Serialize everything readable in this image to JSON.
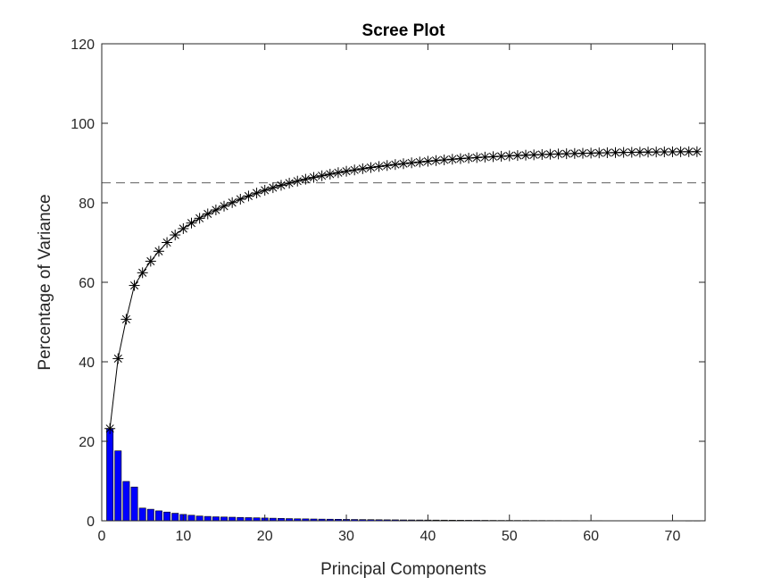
{
  "chart_data": {
    "type": "bar",
    "title": "Scree Plot",
    "xlabel": "Principal Components",
    "ylabel": "Percentage of Variance",
    "xlim": [
      0,
      74
    ],
    "ylim": [
      0,
      120
    ],
    "xticks": [
      0,
      10,
      20,
      30,
      40,
      50,
      60,
      70
    ],
    "yticks": [
      0,
      20,
      40,
      60,
      80,
      100,
      120
    ],
    "threshold": 85,
    "colors": {
      "bars": "#0000ff",
      "bar_edge": "#000000",
      "line": "#000000",
      "threshold": "#262626",
      "axes": "#262626"
    },
    "series": [
      {
        "type": "bar",
        "x": [
          1,
          2,
          3,
          4,
          5,
          6,
          7,
          8,
          9,
          10,
          11,
          12,
          13,
          14,
          15,
          16,
          17,
          18,
          19,
          20,
          21,
          22,
          23,
          24,
          25,
          26,
          27,
          28,
          29,
          30,
          31,
          32,
          33,
          34,
          35,
          36,
          37,
          38,
          39,
          40,
          41,
          42,
          43,
          44,
          45,
          46,
          47,
          48,
          49,
          50,
          51,
          52,
          53,
          54,
          55,
          56,
          57,
          58,
          59,
          60,
          61,
          62,
          63,
          64,
          65,
          66,
          67,
          68,
          69,
          70,
          71,
          72,
          73
        ],
        "values": [
          23.2,
          17.6,
          9.9,
          8.5,
          3.2,
          2.9,
          2.5,
          2.2,
          1.9,
          1.6,
          1.4,
          1.2,
          1.1,
          1.0,
          0.95,
          0.9,
          0.85,
          0.8,
          0.75,
          0.7,
          0.65,
          0.6,
          0.55,
          0.5,
          0.48,
          0.45,
          0.42,
          0.4,
          0.38,
          0.35,
          0.33,
          0.31,
          0.29,
          0.27,
          0.25,
          0.24,
          0.22,
          0.21,
          0.2,
          0.19,
          0.18,
          0.17,
          0.16,
          0.15,
          0.14,
          0.13,
          0.12,
          0.11,
          0.1,
          0.1,
          0.09,
          0.09,
          0.08,
          0.08,
          0.07,
          0.07,
          0.06,
          0.06,
          0.05,
          0.05,
          0.05,
          0.04,
          0.04,
          0.04,
          0.03,
          0.03,
          0.03,
          0.02,
          0.02,
          0.02,
          0.02,
          0.01,
          0.01
        ]
      },
      {
        "type": "line",
        "marker": "asterisk",
        "x": [
          1,
          2,
          3,
          4,
          5,
          6,
          7,
          8,
          9,
          10,
          11,
          12,
          13,
          14,
          15,
          16,
          17,
          18,
          19,
          20,
          21,
          22,
          23,
          24,
          25,
          26,
          27,
          28,
          29,
          30,
          31,
          32,
          33,
          34,
          35,
          36,
          37,
          38,
          39,
          40,
          41,
          42,
          43,
          44,
          45,
          46,
          47,
          48,
          49,
          50,
          51,
          52,
          53,
          54,
          55,
          56,
          57,
          58,
          59,
          60,
          61,
          62,
          63,
          64,
          65,
          66,
          67,
          68,
          69,
          70,
          71,
          72,
          73
        ],
        "values": [
          23.2,
          40.8,
          50.7,
          59.2,
          62.4,
          65.3,
          67.8,
          70.0,
          71.9,
          73.5,
          74.9,
          76.1,
          77.2,
          78.2,
          79.15,
          80.05,
          80.9,
          81.7,
          82.45,
          83.15,
          83.8,
          84.4,
          84.95,
          85.45,
          85.93,
          86.38,
          86.8,
          87.2,
          87.58,
          87.93,
          88.26,
          88.57,
          88.86,
          89.13,
          89.38,
          89.62,
          89.84,
          90.05,
          90.25,
          90.44,
          90.62,
          90.79,
          90.95,
          91.1,
          91.24,
          91.37,
          91.49,
          91.6,
          91.7,
          91.8,
          91.89,
          91.98,
          92.06,
          92.14,
          92.21,
          92.28,
          92.34,
          92.4,
          92.45,
          92.5,
          92.55,
          92.59,
          92.63,
          92.67,
          92.7,
          92.73,
          92.76,
          92.78,
          92.8,
          92.82,
          92.84,
          92.85,
          92.86
        ]
      }
    ]
  }
}
